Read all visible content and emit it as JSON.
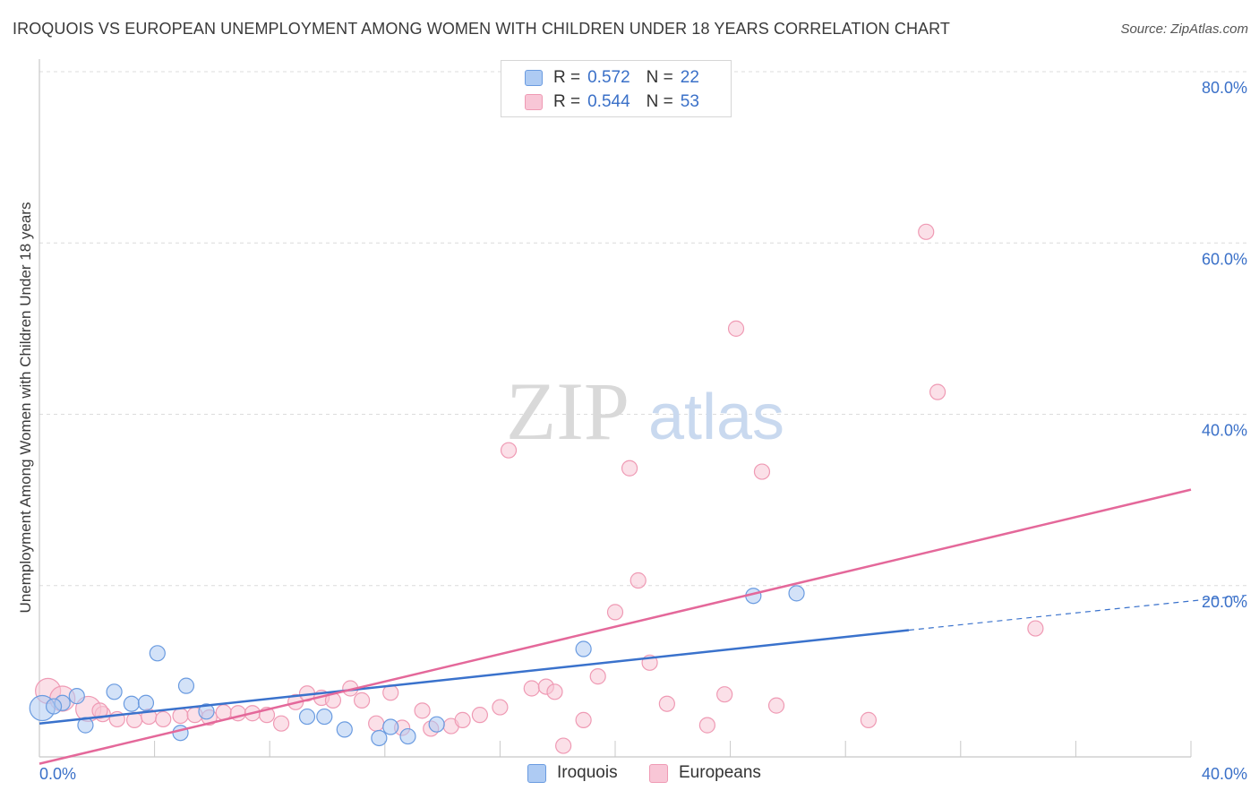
{
  "title": "IROQUOIS VS EUROPEAN UNEMPLOYMENT AMONG WOMEN WITH CHILDREN UNDER 18 YEARS CORRELATION CHART",
  "source": "Source: ZipAtlas.com",
  "watermark": {
    "zip": "ZIP",
    "atlas": "atlas"
  },
  "legend": {
    "rows": [
      {
        "r_label": "R =",
        "r_value": "0.572",
        "n_label": "N =",
        "n_value": "22"
      },
      {
        "r_label": "R =",
        "r_value": "0.544",
        "n_label": "N =",
        "n_value": "53"
      }
    ]
  },
  "bottom_legend": [
    "Iroquois",
    "Europeans"
  ],
  "colors": {
    "iroquois_fill": "#aecbf3",
    "iroquois_stroke": "#6a9be0",
    "iroquois_line": "#3a72cc",
    "europeans_fill": "#f8c6d6",
    "europeans_stroke": "#ef9ab4",
    "europeans_line": "#e4689a",
    "tick_label": "#3a70c8",
    "grid": "#dcdcdc"
  },
  "chart_data": {
    "type": "scatter",
    "title": "IROQUOIS VS EUROPEAN UNEMPLOYMENT AMONG WOMEN WITH CHILDREN UNDER 18 YEARS CORRELATION CHART",
    "xlabel": "",
    "ylabel": "Unemployment Among Women with Children Under 18 years",
    "xlim": [
      0,
      40
    ],
    "ylim": [
      0,
      80
    ],
    "x_ticks": [
      {
        "value": 0,
        "label": "0.0%"
      },
      {
        "value": 40,
        "label": "40.0%"
      }
    ],
    "y_ticks": [
      {
        "value": 20,
        "label": "20.0%"
      },
      {
        "value": 40,
        "label": "40.0%"
      },
      {
        "value": 60,
        "label": "60.0%"
      },
      {
        "value": 80,
        "label": "80.0%"
      }
    ],
    "series": [
      {
        "name": "Iroquois",
        "R": 0.572,
        "N": 22,
        "points": [
          {
            "x": 0.1,
            "y": 5.7,
            "big": true
          },
          {
            "x": 0.8,
            "y": 6.3
          },
          {
            "x": 1.3,
            "y": 7.1
          },
          {
            "x": 1.6,
            "y": 3.7
          },
          {
            "x": 2.6,
            "y": 7.6
          },
          {
            "x": 3.2,
            "y": 6.2
          },
          {
            "x": 3.7,
            "y": 6.3
          },
          {
            "x": 4.1,
            "y": 12.1
          },
          {
            "x": 4.9,
            "y": 2.8
          },
          {
            "x": 5.1,
            "y": 8.3
          },
          {
            "x": 5.8,
            "y": 5.3
          },
          {
            "x": 9.3,
            "y": 4.7
          },
          {
            "x": 9.9,
            "y": 4.7
          },
          {
            "x": 10.6,
            "y": 3.2
          },
          {
            "x": 11.8,
            "y": 2.2
          },
          {
            "x": 12.2,
            "y": 3.5
          },
          {
            "x": 12.8,
            "y": 2.4
          },
          {
            "x": 13.8,
            "y": 3.8
          },
          {
            "x": 18.9,
            "y": 12.6
          },
          {
            "x": 24.8,
            "y": 18.8
          },
          {
            "x": 26.3,
            "y": 19.1
          },
          {
            "x": 0.5,
            "y": 5.9
          }
        ],
        "trendline": {
          "x0": 0,
          "y0": 3.9,
          "x1": 30.2,
          "y1": 14.8,
          "dash_to_x": 40,
          "dash_to_y": 18.2
        }
      },
      {
        "name": "Europeans",
        "R": 0.544,
        "N": 53,
        "points": [
          {
            "x": 0.3,
            "y": 7.7,
            "big": true
          },
          {
            "x": 0.8,
            "y": 6.8,
            "big": true
          },
          {
            "x": 1.7,
            "y": 5.6,
            "big": true
          },
          {
            "x": 2.2,
            "y": 5.0
          },
          {
            "x": 2.7,
            "y": 4.4
          },
          {
            "x": 3.3,
            "y": 4.3
          },
          {
            "x": 3.8,
            "y": 4.7
          },
          {
            "x": 4.3,
            "y": 4.4
          },
          {
            "x": 4.9,
            "y": 4.8
          },
          {
            "x": 5.4,
            "y": 4.9
          },
          {
            "x": 5.9,
            "y": 4.6
          },
          {
            "x": 6.4,
            "y": 5.2
          },
          {
            "x": 6.9,
            "y": 5.1
          },
          {
            "x": 7.4,
            "y": 5.1
          },
          {
            "x": 7.9,
            "y": 4.9
          },
          {
            "x": 8.4,
            "y": 3.9
          },
          {
            "x": 8.9,
            "y": 6.4
          },
          {
            "x": 9.3,
            "y": 7.4
          },
          {
            "x": 9.8,
            "y": 6.9
          },
          {
            "x": 10.2,
            "y": 6.6
          },
          {
            "x": 10.8,
            "y": 8.0
          },
          {
            "x": 11.2,
            "y": 6.6
          },
          {
            "x": 11.7,
            "y": 3.9
          },
          {
            "x": 12.2,
            "y": 7.5
          },
          {
            "x": 12.6,
            "y": 3.4
          },
          {
            "x": 13.3,
            "y": 5.4
          },
          {
            "x": 13.6,
            "y": 3.3
          },
          {
            "x": 14.3,
            "y": 3.6
          },
          {
            "x": 14.7,
            "y": 4.3
          },
          {
            "x": 15.3,
            "y": 4.9
          },
          {
            "x": 16.0,
            "y": 5.8
          },
          {
            "x": 16.3,
            "y": 35.8
          },
          {
            "x": 17.1,
            "y": 8.0
          },
          {
            "x": 17.6,
            "y": 8.2
          },
          {
            "x": 17.9,
            "y": 7.6
          },
          {
            "x": 18.2,
            "y": 1.3
          },
          {
            "x": 18.9,
            "y": 4.3
          },
          {
            "x": 19.4,
            "y": 9.4
          },
          {
            "x": 20.0,
            "y": 16.9
          },
          {
            "x": 20.5,
            "y": 33.7
          },
          {
            "x": 20.8,
            "y": 20.6
          },
          {
            "x": 21.2,
            "y": 11.0
          },
          {
            "x": 21.8,
            "y": 6.2
          },
          {
            "x": 23.2,
            "y": 3.7
          },
          {
            "x": 23.8,
            "y": 7.3
          },
          {
            "x": 24.2,
            "y": 50.0
          },
          {
            "x": 25.1,
            "y": 33.3
          },
          {
            "x": 25.6,
            "y": 6.0
          },
          {
            "x": 28.8,
            "y": 4.3
          },
          {
            "x": 30.8,
            "y": 61.3
          },
          {
            "x": 31.2,
            "y": 42.6
          },
          {
            "x": 34.6,
            "y": 15.0
          },
          {
            "x": 2.1,
            "y": 5.4
          }
        ],
        "trendline": {
          "x0": 0,
          "y0": -0.8,
          "x1": 40,
          "y1": 31.2
        }
      }
    ]
  }
}
